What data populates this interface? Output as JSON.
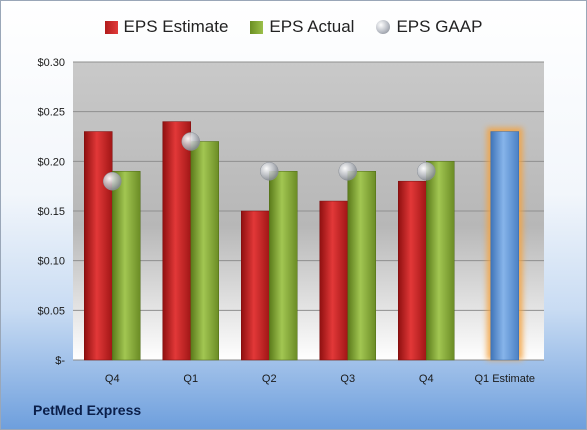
{
  "footer": {
    "company": "PetMed Express"
  },
  "colors": {
    "estimate": "#cc2424",
    "actual": "#8db03a",
    "gaap": "#b8bcc4",
    "forecast": "#6a9fd8",
    "forecast_glow": "#f4a340"
  },
  "chart_data": {
    "type": "bar",
    "categories": [
      "Q4",
      "Q1",
      "Q2",
      "Q3",
      "Q4",
      "Q1 Estimate"
    ],
    "series": [
      {
        "name": "EPS Estimate",
        "values": [
          0.23,
          0.24,
          0.15,
          0.16,
          0.18,
          0.23
        ]
      },
      {
        "name": "EPS Actual",
        "values": [
          0.19,
          0.22,
          0.19,
          0.19,
          0.2,
          null
        ]
      },
      {
        "name": "EPS GAAP",
        "marker": "circle",
        "values": [
          0.18,
          0.22,
          0.19,
          0.19,
          0.19,
          null
        ]
      }
    ],
    "ylim": [
      0,
      0.3
    ],
    "yticks": [
      0,
      0.05,
      0.1,
      0.15,
      0.2,
      0.25,
      0.3
    ],
    "ytick_labels": [
      "$-",
      "$0.05",
      "$0.10",
      "$0.15",
      "$0.20",
      "$0.25",
      "$0.30"
    ],
    "legend_position": "top-center",
    "grid": true,
    "highlighted_category": "Q1 Estimate"
  }
}
